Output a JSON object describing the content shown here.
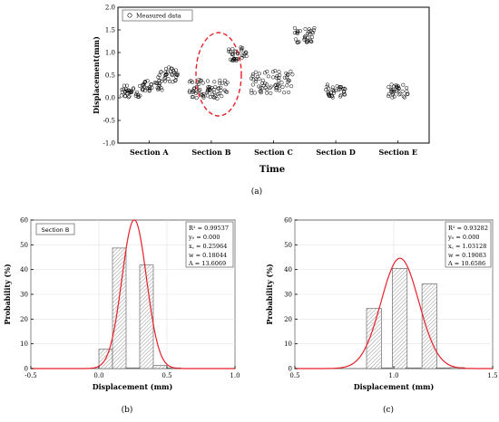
{
  "chart_data": [
    {
      "type": "scatter",
      "panel_label": "(a)",
      "xlabel": "Time",
      "ylabel": "Displacement(mm)",
      "ylim": [
        -1.0,
        2.0
      ],
      "yticks": [
        "-1.0",
        "-0.5",
        "0.0",
        "0.5",
        "1.0",
        "1.5",
        "2.0"
      ],
      "categories": [
        "Section A",
        "Section B",
        "Section C",
        "Section D",
        "Section E"
      ],
      "legend": {
        "label": "Measured data",
        "position": "top-left"
      },
      "series": [
        {
          "category": "Section A",
          "groups": [
            {
              "x_offset": -0.3,
              "y_min": 0.0,
              "y_max": 0.28
            },
            {
              "x_offset": 0.05,
              "y_min": 0.15,
              "y_max": 0.4
            },
            {
              "x_offset": 0.3,
              "y_min": 0.35,
              "y_max": 0.68
            }
          ]
        },
        {
          "category": "Section B",
          "groups": [
            {
              "x_offset": -0.2,
              "y_min": -0.02,
              "y_max": 0.42
            },
            {
              "x_offset": 0.1,
              "y_min": -0.02,
              "y_max": 0.4
            },
            {
              "x_offset": 0.42,
              "y_min": 0.82,
              "y_max": 1.15
            }
          ]
        },
        {
          "category": "Section C",
          "groups": [
            {
              "x_offset": -0.2,
              "y_min": 0.1,
              "y_max": 0.6
            },
            {
              "x_offset": 0.15,
              "y_min": 0.1,
              "y_max": 0.6
            },
            {
              "x_offset": 0.5,
              "y_min": 1.2,
              "y_max": 1.55
            }
          ]
        },
        {
          "category": "Section D",
          "groups": [
            {
              "x_offset": 0.0,
              "y_min": 0.0,
              "y_max": 0.3
            }
          ]
        },
        {
          "category": "Section E",
          "groups": [
            {
              "x_offset": 0.0,
              "y_min": 0.0,
              "y_max": 0.3
            }
          ]
        }
      ],
      "annotation": {
        "type": "dashed-ellipse",
        "color": "#e8202a",
        "target": "Section B"
      }
    },
    {
      "type": "bar",
      "panel_label": "(b)",
      "title_box": "Section B",
      "xlabel": "Displacement (mm)",
      "ylabel": "Probability (%)",
      "xlim": [
        -0.5,
        1.0
      ],
      "ylim": [
        0,
        60
      ],
      "xticks": [
        "-0.5",
        "0.0",
        "0.5",
        "1.0"
      ],
      "yticks": [
        "0",
        "10",
        "20",
        "30",
        "40",
        "50",
        "60"
      ],
      "bin_width": 0.1,
      "bins": [
        {
          "center": 0.05,
          "value": 7.8
        },
        {
          "center": 0.15,
          "value": 48.7
        },
        {
          "center": 0.25,
          "value": 0.3
        },
        {
          "center": 0.35,
          "value": 41.8
        },
        {
          "center": 0.45,
          "value": 1.2
        },
        {
          "center": 0.55,
          "value": 0.3
        }
      ],
      "fit": {
        "color": "#e8202a",
        "xc": 0.25964,
        "w": 0.18044,
        "A": 13.6069,
        "y0": 0.0
      },
      "stats": [
        "R² = 0.99537",
        "y₀ = 0.000",
        "x꜀ = 0.25964",
        "w = 0.18044",
        "A = 13.6069"
      ]
    },
    {
      "type": "bar",
      "panel_label": "(c)",
      "xlabel": "Displacement (mm)",
      "ylabel": "Probability (%)",
      "xlim": [
        0.5,
        1.5
      ],
      "ylim": [
        0,
        60
      ],
      "xticks": [
        "0.5",
        "1.0",
        "1.5"
      ],
      "yticks": [
        "0",
        "10",
        "20",
        "30",
        "40",
        "50",
        "60"
      ],
      "bin_width": 0.075,
      "bins": [
        {
          "center": 0.9,
          "value": 24.3
        },
        {
          "center": 0.975,
          "value": 0.3
        },
        {
          "center": 1.03,
          "value": 40.5
        },
        {
          "center": 1.1,
          "value": 0.3
        },
        {
          "center": 1.18,
          "value": 34.2
        },
        {
          "center": 1.25,
          "value": 0.3
        },
        {
          "center": 1.32,
          "value": 0.4
        }
      ],
      "fit": {
        "color": "#e8202a",
        "xc": 1.03128,
        "w": 0.19083,
        "A": 10.6586,
        "y0": 0.0
      },
      "stats": [
        "R² = 0.93282",
        "y₀ = 0.000",
        "x꜀ = 1.03128",
        "w = 0.19083",
        "A = 10.6586"
      ]
    }
  ]
}
